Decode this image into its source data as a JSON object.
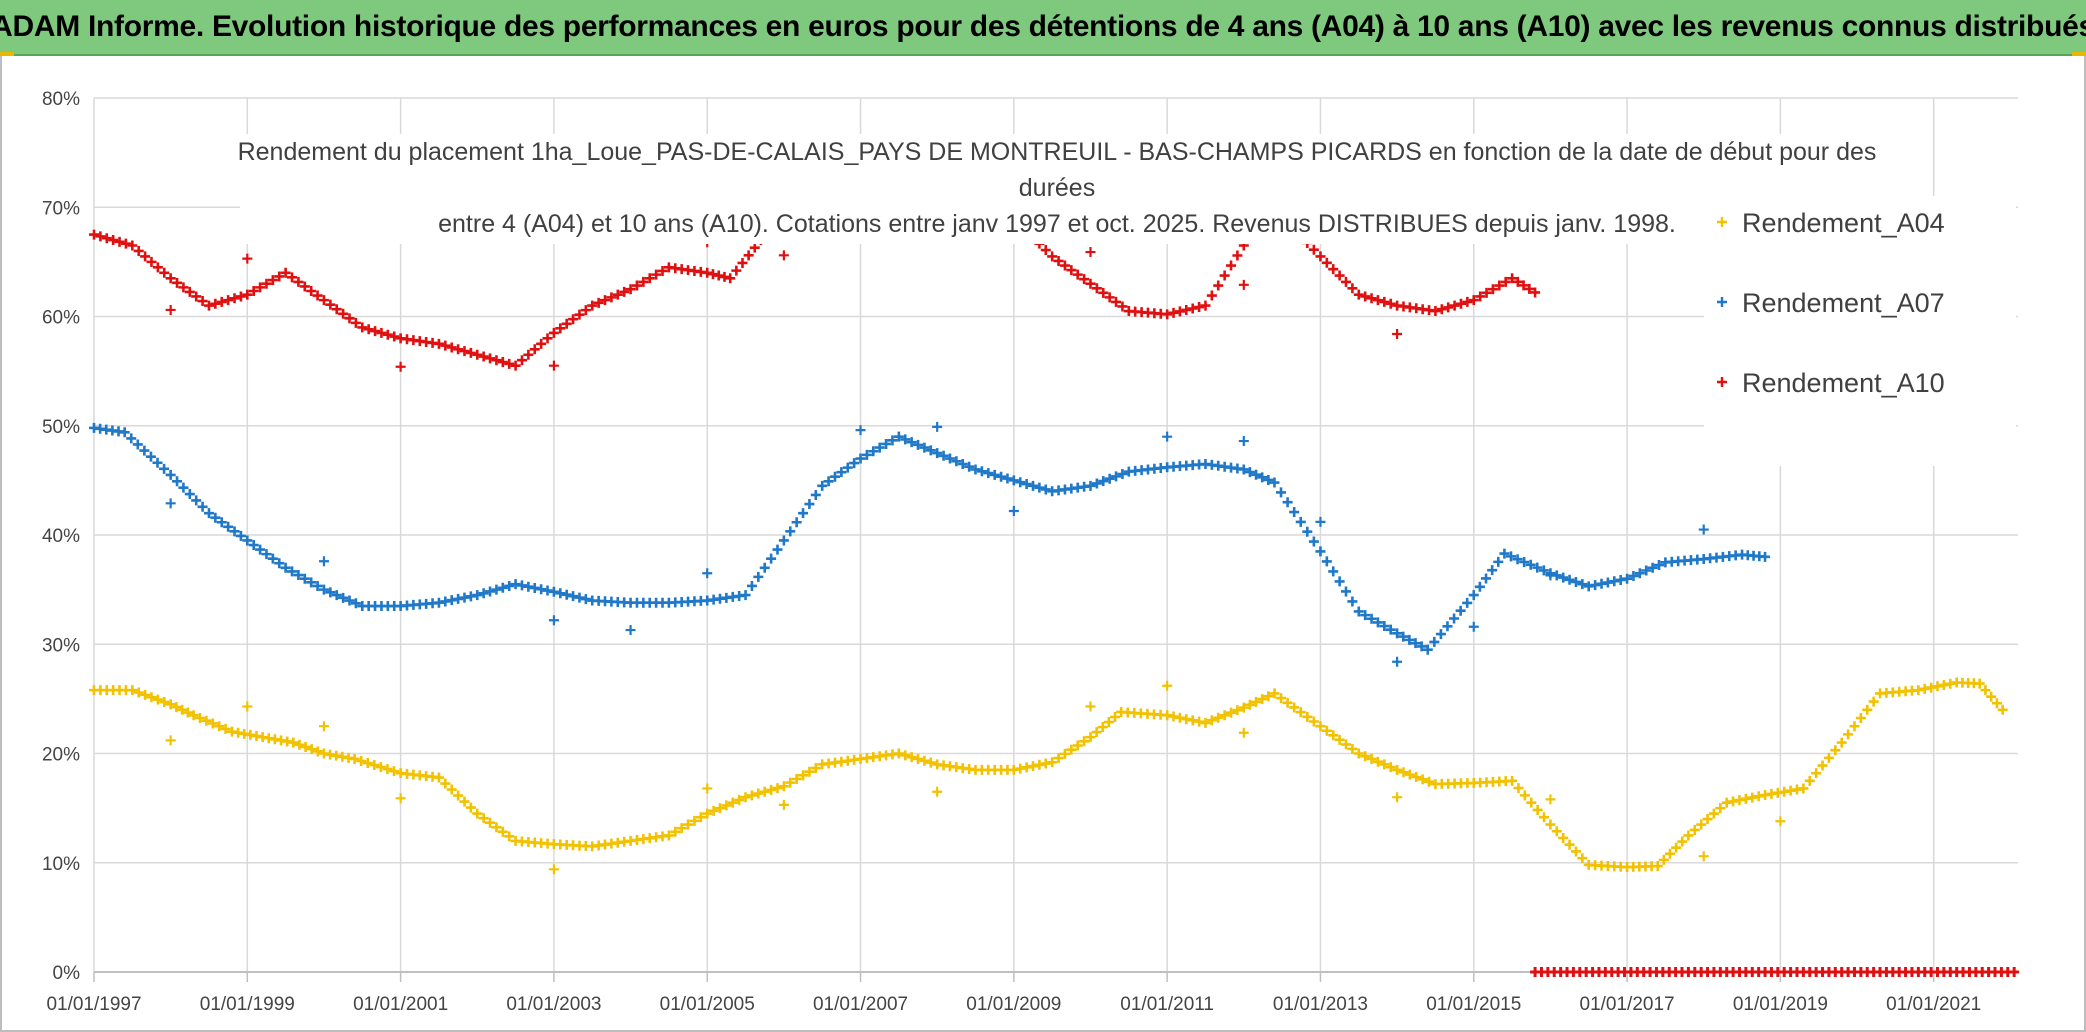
{
  "header": {
    "title": "ADAM Informe. Evolution historique des performances en euros pour des détentions de 4 ans (A04) à 10 ans (A10) avec les revenus connus distribués"
  },
  "chart_data": {
    "type": "scatter",
    "title_lines": [
      "Rendement du placement 1ha_Loue_PAS-DE-CALAIS_PAYS DE MONTREUIL - BAS-CHAMPS PICARDS en fonction de la date de début pour des",
      "durées",
      "entre 4 (A04) et 10 ans (A10). Cotations entre janv 1997 et oct. 2025. Revenus DISTRIBUES depuis janv. 1998."
    ],
    "x_ticks": [
      "01/01/1997",
      "01/01/1999",
      "01/01/2001",
      "01/01/2003",
      "01/01/2005",
      "01/01/2007",
      "01/01/2009",
      "01/01/2011",
      "01/01/2013",
      "01/01/2015",
      "01/01/2017",
      "01/01/2019",
      "01/01/2021"
    ],
    "xlim": [
      1997.0,
      2022.1
    ],
    "ylim": [
      0,
      80
    ],
    "y_ticks": [
      "0%",
      "10%",
      "20%",
      "30%",
      "40%",
      "50%",
      "60%",
      "70%",
      "80%"
    ],
    "y_tick_values": [
      0,
      10,
      20,
      30,
      40,
      50,
      60,
      70,
      80
    ],
    "legend": [
      {
        "name": "Rendement_A04",
        "color": "#f2c200"
      },
      {
        "name": "Rendement_A07",
        "color": "#1f78c8"
      },
      {
        "name": "Rendement_A10",
        "color": "#e01010"
      }
    ],
    "series": [
      {
        "name": "Rendement_A04",
        "color": "#f2c200",
        "points": [
          [
            1997.0,
            25.8
          ],
          [
            1997.5,
            25.8
          ],
          [
            1998.0,
            24.5
          ],
          [
            1998.3,
            23.5
          ],
          [
            1998.8,
            22
          ],
          [
            1999.2,
            21.5
          ],
          [
            1999.6,
            21
          ],
          [
            2000.0,
            20
          ],
          [
            2000.4,
            19.5
          ],
          [
            2001.0,
            18.2
          ],
          [
            2001.5,
            17.8
          ],
          [
            2002.0,
            14.5
          ],
          [
            2002.5,
            12
          ],
          [
            2003.0,
            11.7
          ],
          [
            2003.5,
            11.5
          ],
          [
            2004.0,
            12
          ],
          [
            2004.5,
            12.5
          ],
          [
            2005.0,
            14.5
          ],
          [
            2005.5,
            16
          ],
          [
            2006.0,
            17
          ],
          [
            2006.5,
            19
          ],
          [
            2007.0,
            19.5
          ],
          [
            2007.5,
            20
          ],
          [
            2008.0,
            19
          ],
          [
            2008.5,
            18.5
          ],
          [
            2009.0,
            18.5
          ],
          [
            2009.5,
            19.2
          ],
          [
            2010.0,
            21.5
          ],
          [
            2010.4,
            23.8
          ],
          [
            2011.0,
            23.5
          ],
          [
            2011.5,
            22.8
          ],
          [
            2012.0,
            24.2
          ],
          [
            2012.4,
            25.5
          ],
          [
            2013.0,
            22.5
          ],
          [
            2013.5,
            20
          ],
          [
            2014.0,
            18.5
          ],
          [
            2014.5,
            17.2
          ],
          [
            2015.0,
            17.3
          ],
          [
            2015.5,
            17.5
          ],
          [
            2016.0,
            13.5
          ],
          [
            2016.5,
            9.8
          ],
          [
            2017.0,
            9.6
          ],
          [
            2017.4,
            9.7
          ],
          [
            2017.8,
            12.5
          ],
          [
            2018.3,
            15.5
          ],
          [
            2018.8,
            16.2
          ],
          [
            2019.3,
            16.8
          ],
          [
            2019.8,
            21
          ],
          [
            2020.3,
            25.5
          ],
          [
            2020.8,
            25.8
          ],
          [
            2021.3,
            26.5
          ],
          [
            2021.6,
            26.4
          ],
          [
            2021.9,
            24
          ]
        ],
        "outliers": [
          [
            1998.0,
            21.2
          ],
          [
            1999.0,
            24.3
          ],
          [
            2000.0,
            22.5
          ],
          [
            2001.0,
            15.9
          ],
          [
            2003.0,
            9.4
          ],
          [
            2005.0,
            16.8
          ],
          [
            2006.0,
            15.3
          ],
          [
            2008.0,
            16.5
          ],
          [
            2010.0,
            24.3
          ],
          [
            2011.0,
            26.2
          ],
          [
            2012.0,
            21.9
          ],
          [
            2014.0,
            16
          ],
          [
            2016.0,
            15.8
          ],
          [
            2018.0,
            10.6
          ],
          [
            2019.0,
            13.8
          ]
        ]
      },
      {
        "name": "Rendement_A07",
        "color": "#1f78c8",
        "points": [
          [
            1997.0,
            49.8
          ],
          [
            1997.4,
            49.4
          ],
          [
            1998.0,
            45.5
          ],
          [
            1998.5,
            42
          ],
          [
            1999.0,
            39.5
          ],
          [
            1999.5,
            37
          ],
          [
            2000.0,
            35
          ],
          [
            2000.5,
            33.5
          ],
          [
            2001.0,
            33.5
          ],
          [
            2001.5,
            33.8
          ],
          [
            2002.0,
            34.5
          ],
          [
            2002.5,
            35.5
          ],
          [
            2003.0,
            34.8
          ],
          [
            2003.5,
            34
          ],
          [
            2004.0,
            33.8
          ],
          [
            2004.5,
            33.8
          ],
          [
            2005.0,
            34
          ],
          [
            2005.5,
            34.5
          ],
          [
            2006.0,
            39.5
          ],
          [
            2006.5,
            44.5
          ],
          [
            2007.0,
            47
          ],
          [
            2007.5,
            49
          ],
          [
            2008.0,
            47.5
          ],
          [
            2008.5,
            46
          ],
          [
            2009.0,
            45
          ],
          [
            2009.5,
            44
          ],
          [
            2010.0,
            44.5
          ],
          [
            2010.5,
            45.8
          ],
          [
            2011.0,
            46.2
          ],
          [
            2011.5,
            46.5
          ],
          [
            2012.0,
            46
          ],
          [
            2012.4,
            44.8
          ],
          [
            2013.0,
            38.5
          ],
          [
            2013.5,
            33
          ],
          [
            2014.0,
            31
          ],
          [
            2014.4,
            29.5
          ],
          [
            2015.0,
            34.5
          ],
          [
            2015.4,
            38.3
          ],
          [
            2016.0,
            36.5
          ],
          [
            2016.5,
            35.3
          ],
          [
            2017.0,
            36
          ],
          [
            2017.5,
            37.5
          ],
          [
            2018.0,
            37.8
          ],
          [
            2018.5,
            38.2
          ],
          [
            2018.8,
            38
          ]
        ],
        "outliers": [
          [
            1998.0,
            42.9
          ],
          [
            2000.0,
            37.6
          ],
          [
            2003.0,
            32.2
          ],
          [
            2004.0,
            31.3
          ],
          [
            2005.0,
            36.5
          ],
          [
            2007.0,
            49.6
          ],
          [
            2008.0,
            49.9
          ],
          [
            2009.0,
            42.2
          ],
          [
            2011.0,
            49
          ],
          [
            2012.0,
            48.6
          ],
          [
            2013.0,
            41.2
          ],
          [
            2014.0,
            28.4
          ],
          [
            2015.0,
            31.6
          ],
          [
            2016.0,
            36.3
          ],
          [
            2018.0,
            40.5
          ]
        ]
      },
      {
        "name": "Rendement_A10",
        "color": "#e01010",
        "points": [
          [
            1997.0,
            67.5
          ],
          [
            1997.5,
            66.5
          ],
          [
            1998.0,
            63.5
          ],
          [
            1998.5,
            61
          ],
          [
            1999.0,
            62
          ],
          [
            1999.5,
            64
          ],
          [
            2000.0,
            61.5
          ],
          [
            2000.5,
            59
          ],
          [
            2001.0,
            58
          ],
          [
            2001.5,
            57.5
          ],
          [
            2002.0,
            56.5
          ],
          [
            2002.5,
            55.5
          ],
          [
            2003.0,
            58.5
          ],
          [
            2003.5,
            61
          ],
          [
            2004.0,
            62.5
          ],
          [
            2004.5,
            64.5
          ],
          [
            2005.0,
            64
          ],
          [
            2005.3,
            63.5
          ],
          [
            2005.7,
            67
          ],
          [
            2006.0,
            70
          ],
          [
            2008.8,
            70
          ],
          [
            2009.0,
            69
          ],
          [
            2009.5,
            65.5
          ],
          [
            2010.0,
            63
          ],
          [
            2010.5,
            60.5
          ],
          [
            2011.0,
            60.2
          ],
          [
            2011.5,
            61
          ],
          [
            2012.0,
            66.5
          ],
          [
            2012.4,
            69.8
          ],
          [
            2013.0,
            65.5
          ],
          [
            2013.5,
            62
          ],
          [
            2014.0,
            61
          ],
          [
            2014.5,
            60.5
          ],
          [
            2015.0,
            61.5
          ],
          [
            2015.5,
            63.5
          ],
          [
            2015.8,
            62.2
          ]
        ],
        "outliers": [
          [
            1998.0,
            60.6
          ],
          [
            1999.0,
            65.3
          ],
          [
            2001.0,
            55.4
          ],
          [
            2003.0,
            55.5
          ],
          [
            2005.0,
            66.8
          ],
          [
            2006.0,
            65.6
          ],
          [
            2010.0,
            65.9
          ],
          [
            2012.0,
            62.9
          ],
          [
            2014.0,
            58.4
          ]
        ],
        "zero_range": [
          2015.8,
          2022.1
        ]
      }
    ]
  }
}
